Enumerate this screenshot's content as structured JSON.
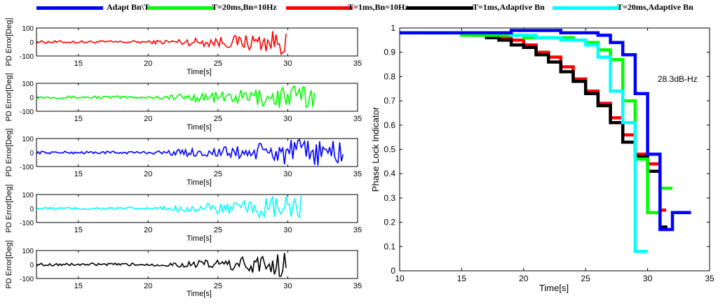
{
  "legend": [
    {
      "label": "Adapt Bn\\T",
      "color": "#0000ff"
    },
    {
      "label": "T=20ms,Bn=10Hz",
      "color": "#00ff00"
    },
    {
      "label": "T=1ms,Bn=10Hz",
      "color": "#ff0000"
    },
    {
      "label": "T=1ms,Adaptive Bn",
      "color": "#000000"
    },
    {
      "label": "T=20ms,Adaptive Bn",
      "color": "#00ffff"
    }
  ],
  "chart_data": [
    {
      "type": "line",
      "ylabel": "PD Error[Deg]",
      "xlabel": "Time[s]",
      "color": "#ff0000",
      "xlim": [
        12,
        35
      ],
      "ylim": [
        -100,
        100
      ],
      "xticks": [
        15,
        20,
        25,
        30,
        35
      ],
      "yticks": [
        100,
        0,
        -100
      ],
      "x_end": 30,
      "ylabels_shown": true
    },
    {
      "type": "line",
      "ylabel": "PD Error[Deg]",
      "xlabel": "Time[s]",
      "color": "#00ff00",
      "xlim": [
        12,
        35
      ],
      "ylim": [
        -100,
        100
      ],
      "xticks": [
        15,
        20,
        25,
        30,
        35
      ],
      "yticks": [
        100,
        0,
        -100
      ],
      "x_end": 32,
      "ylabels_shown": true
    },
    {
      "type": "line",
      "ylabel": "PD Error[Deg]",
      "xlabel": "Time[s]",
      "color": "#0000ff",
      "xlim": [
        12,
        35
      ],
      "ylim": [
        -100,
        100
      ],
      "xticks": [
        15,
        20,
        25,
        30,
        35
      ],
      "yticks": [
        100,
        0,
        -100
      ],
      "x_end": 34,
      "ylabels_shown": true
    },
    {
      "type": "line",
      "ylabel": "PD Error[Deg]",
      "xlabel": "Time[s]",
      "color": "#00ffff",
      "xlim": [
        12,
        35
      ],
      "ylim": [
        -100,
        100
      ],
      "xticks": [
        15,
        20,
        25,
        30,
        35
      ],
      "yticks": [
        100,
        0,
        -100
      ],
      "x_end": 31,
      "ylabels_shown": true
    },
    {
      "type": "line",
      "ylabel": "PD Error[Deg]",
      "xlabel": "Time[s]",
      "color": "#000000",
      "xlim": [
        12,
        35
      ],
      "ylim": [
        -100,
        100
      ],
      "xticks": [
        15,
        20,
        25,
        30,
        35
      ],
      "yticks": [
        100,
        0,
        -100
      ],
      "x_end": 30,
      "ylabels_shown": true
    },
    {
      "type": "line",
      "title": "",
      "ylabel": "Phase Lock Indicator",
      "xlabel": "Time[s]",
      "xlim": [
        10,
        35
      ],
      "ylim": [
        0,
        1
      ],
      "xticks": [
        10,
        15,
        20,
        25,
        30,
        35
      ],
      "yticks": [
        0,
        0.1,
        0.2,
        0.3,
        0.4,
        0.5,
        0.6,
        0.7,
        0.8,
        0.9,
        1
      ],
      "annotation": "28.3dB-Hz",
      "series": [
        {
          "color": "#ff0000",
          "steps": [
            [
              10,
              0.98
            ],
            [
              12,
              0.98
            ],
            [
              17,
              0.97
            ],
            [
              18,
              0.96
            ],
            [
              19,
              0.95
            ],
            [
              20,
              0.93
            ],
            [
              21,
              0.9
            ],
            [
              22,
              0.88
            ],
            [
              23,
              0.84
            ],
            [
              24,
              0.79
            ],
            [
              25,
              0.74
            ],
            [
              26,
              0.69
            ],
            [
              27,
              0.63
            ],
            [
              28,
              0.56
            ],
            [
              29,
              0.48
            ],
            [
              30,
              0.44
            ],
            [
              31,
              0.25
            ],
            [
              31.5,
              0.25
            ]
          ]
        },
        {
          "color": "#000000",
          "steps": [
            [
              12,
              0.98
            ],
            [
              16,
              0.97
            ],
            [
              17,
              0.96
            ],
            [
              18,
              0.95
            ],
            [
              19,
              0.93
            ],
            [
              20,
              0.92
            ],
            [
              21,
              0.89
            ],
            [
              22,
              0.86
            ],
            [
              23,
              0.82
            ],
            [
              24,
              0.78
            ],
            [
              25,
              0.73
            ],
            [
              26,
              0.68
            ],
            [
              27,
              0.61
            ],
            [
              28,
              0.53
            ],
            [
              29,
              0.47
            ],
            [
              30,
              0.41
            ],
            [
              31,
              0.18
            ],
            [
              31.6,
              0.18
            ]
          ]
        },
        {
          "color": "#00ff00",
          "steps": [
            [
              10,
              0.98
            ],
            [
              15,
              0.97
            ],
            [
              17,
              0.97
            ],
            [
              20,
              0.96
            ],
            [
              22,
              0.96
            ],
            [
              24,
              0.95
            ],
            [
              25,
              0.94
            ],
            [
              26,
              0.91
            ],
            [
              27,
              0.87
            ],
            [
              28,
              0.7
            ],
            [
              29,
              0.46
            ],
            [
              30,
              0.24
            ],
            [
              31,
              0.34
            ],
            [
              32,
              0.34
            ]
          ]
        },
        {
          "color": "#00ffff",
          "steps": [
            [
              10,
              0.98
            ],
            [
              16,
              0.98
            ],
            [
              19,
              0.97
            ],
            [
              21,
              0.96
            ],
            [
              23,
              0.95
            ],
            [
              24,
              0.95
            ],
            [
              25,
              0.93
            ],
            [
              26,
              0.88
            ],
            [
              27,
              0.74
            ],
            [
              28,
              0.61
            ],
            [
              29,
              0.08
            ],
            [
              30,
              0.08
            ]
          ]
        },
        {
          "color": "#0000ff",
          "steps": [
            [
              10,
              0.98
            ],
            [
              16,
              0.98
            ],
            [
              19,
              0.99
            ],
            [
              21,
              0.99
            ],
            [
              23,
              0.98
            ],
            [
              24,
              0.98
            ],
            [
              26,
              0.97
            ],
            [
              27,
              0.94
            ],
            [
              28,
              0.89
            ],
            [
              29,
              0.73
            ],
            [
              30,
              0.48
            ],
            [
              31,
              0.17
            ],
            [
              32,
              0.24
            ],
            [
              33.5,
              0.24
            ]
          ]
        }
      ]
    }
  ]
}
